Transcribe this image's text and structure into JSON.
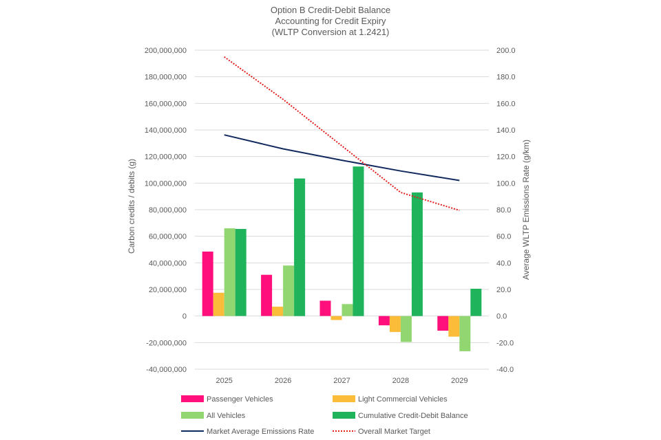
{
  "chart_data": {
    "type": "bar",
    "title_lines": [
      "Option B Credit-Debit Balance",
      "Accounting for Credit Expiry",
      "(WLTP Conversion at 1.2421)"
    ],
    "categories": [
      "2025",
      "2026",
      "2027",
      "2028",
      "2029"
    ],
    "ylabel": "Carbon credits / debits (g)",
    "y2label": "Average WLTP Emissions Rate (g/km)",
    "ylim": [
      -40000000,
      200000000
    ],
    "y2lim": [
      -40,
      200
    ],
    "y_ticks": [
      "200,000,000",
      "180,000,000",
      "160,000,000",
      "140,000,000",
      "120,000,000",
      "100,000,000",
      "80,000,000",
      "60,000,000",
      "40,000,000",
      "20,000,000",
      "0",
      "-20,000,000",
      "-40,000,000"
    ],
    "y2_ticks": [
      "200.0",
      "180.0",
      "160.0",
      "140.0",
      "120.0",
      "100.0",
      "80.0",
      "60.0",
      "40.0",
      "20.0",
      "0.0",
      "-20.0",
      "-40.0"
    ],
    "grid": true,
    "legend_position": "bottom",
    "bar_series": [
      {
        "name": "Passenger Vehicles",
        "color": "#ff0f7b",
        "values": [
          48500000,
          31000000,
          11500000,
          -7000000,
          -11000000
        ]
      },
      {
        "name": "Light Commercial Vehicles",
        "color": "#fbbc3a",
        "values": [
          17500000,
          7000000,
          -3000000,
          -12000000,
          -15500000
        ]
      },
      {
        "name": "All Vehicles",
        "color": "#92d672",
        "values": [
          66000000,
          38000000,
          9000000,
          -19500000,
          -26500000
        ]
      },
      {
        "name": "Cumulative Credit-Debit Balance",
        "color": "#1fb35c",
        "values": [
          65500000,
          103500000,
          112500000,
          93000000,
          20500000
        ]
      }
    ],
    "line_series": [
      {
        "name": "Market Average Emissions Rate",
        "color": "#102a5e",
        "style": "solid",
        "axis": "secondary",
        "values": [
          136.3,
          125.8,
          117.2,
          109.1,
          102.0
        ]
      },
      {
        "name": "Overall Market Target",
        "color": "#e21b1b",
        "style": "dotted",
        "axis": "secondary",
        "values": [
          195.0,
          163.0,
          128.0,
          93.0,
          79.5
        ]
      }
    ]
  }
}
